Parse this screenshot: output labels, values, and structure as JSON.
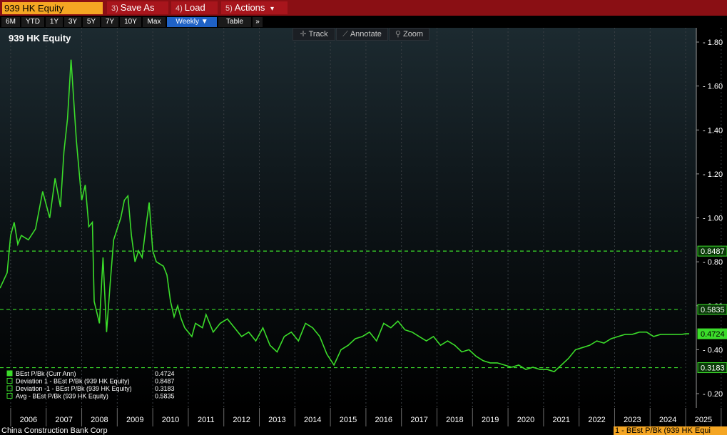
{
  "toolbar": {
    "ticker": "939 HK Equity",
    "save_num": "3)",
    "save_label": "Save As",
    "load_num": "4)",
    "load_label": "Load",
    "actions_num": "5)",
    "actions_label": "Actions",
    "actions_caret": "▾"
  },
  "ranges": [
    "6M",
    "YTD",
    "1Y",
    "3Y",
    "5Y",
    "7Y",
    "10Y",
    "Max"
  ],
  "frequency": "Weekly ▼",
  "table_label": "Table",
  "more_label": "»",
  "tools": {
    "track": "Track",
    "annotate": "Annotate",
    "zoom": "Zoom"
  },
  "footer": {
    "company": "China Construction Bank Corp",
    "series_tag": "1 - BEst P/Bk (939 HK Equi"
  },
  "colors": {
    "line": "#3bdc2a",
    "topbar": "#8a0f14",
    "accent": "#f5a623",
    "active_range": "#1f62c6"
  },
  "chart_data": {
    "type": "line",
    "title": "939 HK Equity",
    "x_ticks": [
      "2006",
      "2007",
      "2008",
      "2009",
      "2010",
      "2011",
      "2012",
      "2013",
      "2014",
      "2015",
      "2016",
      "2017",
      "2018",
      "2019",
      "2020",
      "2021",
      "2022",
      "2023",
      "2024",
      "2025"
    ],
    "y_ticks": [
      "1.80",
      "1.60",
      "1.40",
      "1.20",
      "1.00",
      "0.80",
      "0.60",
      "0.40",
      "0.20"
    ],
    "ylim": [
      0.2,
      1.8
    ],
    "xlim": [
      2005.7,
      2025.3
    ],
    "grid": true,
    "legend_position": "bottom-left",
    "series": [
      {
        "name": "BEst P/Bk (Curr Ann)",
        "value": "0.4724",
        "x": [
          2005.7,
          2005.9,
          2006.0,
          2006.1,
          2006.2,
          2006.3,
          2006.5,
          2006.7,
          2006.9,
          2007.1,
          2007.25,
          2007.4,
          2007.5,
          2007.6,
          2007.7,
          2007.85,
          2008.0,
          2008.1,
          2008.2,
          2008.3,
          2008.35,
          2008.5,
          2008.6,
          2008.7,
          2008.8,
          2008.9,
          2009.0,
          2009.1,
          2009.2,
          2009.3,
          2009.4,
          2009.5,
          2009.6,
          2009.7,
          2009.8,
          2009.9,
          2010.0,
          2010.1,
          2010.3,
          2010.4,
          2010.5,
          2010.6,
          2010.7,
          2010.8,
          2010.9,
          2011.1,
          2011.2,
          2011.4,
          2011.5,
          2011.7,
          2011.9,
          2012.1,
          2012.3,
          2012.5,
          2012.7,
          2012.9,
          2013.1,
          2013.3,
          2013.5,
          2013.7,
          2013.9,
          2014.1,
          2014.3,
          2014.5,
          2014.7,
          2014.9,
          2015.1,
          2015.3,
          2015.5,
          2015.7,
          2015.9,
          2016.1,
          2016.3,
          2016.5,
          2016.7,
          2016.9,
          2017.1,
          2017.3,
          2017.5,
          2017.7,
          2017.9,
          2018.1,
          2018.3,
          2018.5,
          2018.7,
          2018.9,
          2019.1,
          2019.3,
          2019.5,
          2019.7,
          2019.9,
          2020.1,
          2020.3,
          2020.5,
          2020.7,
          2020.9,
          2021.1,
          2021.3,
          2021.5,
          2021.7,
          2021.9,
          2022.1,
          2022.3,
          2022.5,
          2022.7,
          2022.9,
          2023.1,
          2023.3,
          2023.5,
          2023.7,
          2023.9,
          2024.1,
          2024.3,
          2024.5,
          2024.7,
          2024.9,
          2025.0,
          2025.1
        ],
        "y": [
          0.68,
          0.75,
          0.92,
          0.98,
          0.88,
          0.92,
          0.9,
          0.95,
          1.12,
          1.0,
          1.18,
          1.05,
          1.3,
          1.45,
          1.72,
          1.35,
          1.08,
          1.15,
          0.96,
          0.98,
          0.62,
          0.52,
          0.82,
          0.48,
          0.7,
          0.9,
          0.95,
          1.0,
          1.08,
          1.1,
          0.92,
          0.8,
          0.85,
          0.82,
          0.95,
          1.07,
          0.85,
          0.8,
          0.78,
          0.74,
          0.62,
          0.55,
          0.6,
          0.54,
          0.5,
          0.46,
          0.52,
          0.5,
          0.56,
          0.48,
          0.52,
          0.54,
          0.5,
          0.46,
          0.48,
          0.44,
          0.5,
          0.42,
          0.39,
          0.46,
          0.48,
          0.44,
          0.52,
          0.5,
          0.46,
          0.38,
          0.33,
          0.4,
          0.42,
          0.45,
          0.46,
          0.48,
          0.44,
          0.52,
          0.5,
          0.53,
          0.49,
          0.48,
          0.46,
          0.44,
          0.46,
          0.42,
          0.44,
          0.42,
          0.39,
          0.4,
          0.37,
          0.35,
          0.34,
          0.34,
          0.33,
          0.32,
          0.33,
          0.31,
          0.32,
          0.31,
          0.31,
          0.3,
          0.33,
          0.36,
          0.4,
          0.41,
          0.42,
          0.44,
          0.43,
          0.45,
          0.46,
          0.47,
          0.47,
          0.48,
          0.48,
          0.46,
          0.47,
          0.47,
          0.47,
          0.47,
          0.4724,
          0.4724
        ]
      },
      {
        "name": "Deviation 1 - BEst P/Bk (939 HK Equity)",
        "value": "0.8487",
        "level": 0.8487
      },
      {
        "name": "Deviation -1 - BEst P/Bk (939 HK Equity)",
        "value": "0.3183",
        "level": 0.3183
      },
      {
        "name": "Avg - BEst P/Bk (939 HK Equity)",
        "value": "0.5835",
        "level": 0.5835
      }
    ],
    "right_labels": [
      "0.8487",
      "0.5835",
      "0.4724",
      "0.3183"
    ]
  }
}
